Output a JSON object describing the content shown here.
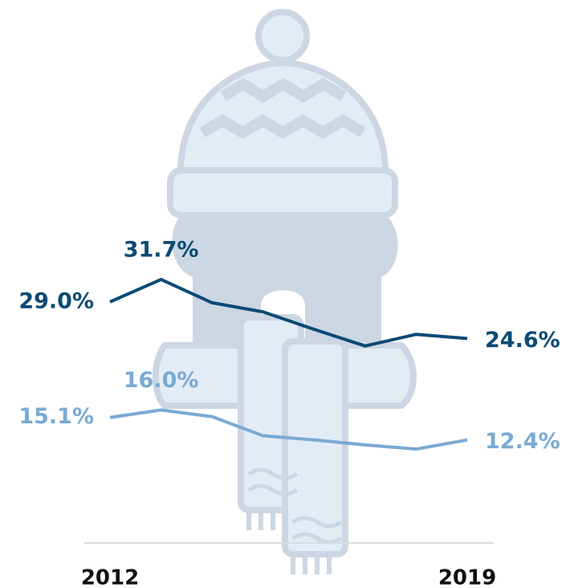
{
  "chart_data": {
    "type": "line",
    "categories": [
      "2012",
      null,
      null,
      null,
      null,
      null,
      null,
      "2019"
    ],
    "ylim": [
      0,
      40
    ],
    "series": [
      {
        "color": "#0b4a74",
        "values": [
          29.0,
          31.7,
          28.9,
          27.8,
          25.7,
          23.7,
          25.1,
          24.6
        ],
        "value_labels": [
          "29.0%",
          "31.7%",
          null,
          null,
          null,
          null,
          null,
          "24.6%"
        ]
      },
      {
        "color": "#7aaad2",
        "values": [
          15.1,
          16.0,
          15.2,
          12.9,
          12.4,
          11.8,
          11.3,
          12.4
        ],
        "value_labels": [
          "15.1%",
          "16.0%",
          null,
          null,
          null,
          null,
          null,
          "12.4%"
        ]
      }
    ]
  }
}
